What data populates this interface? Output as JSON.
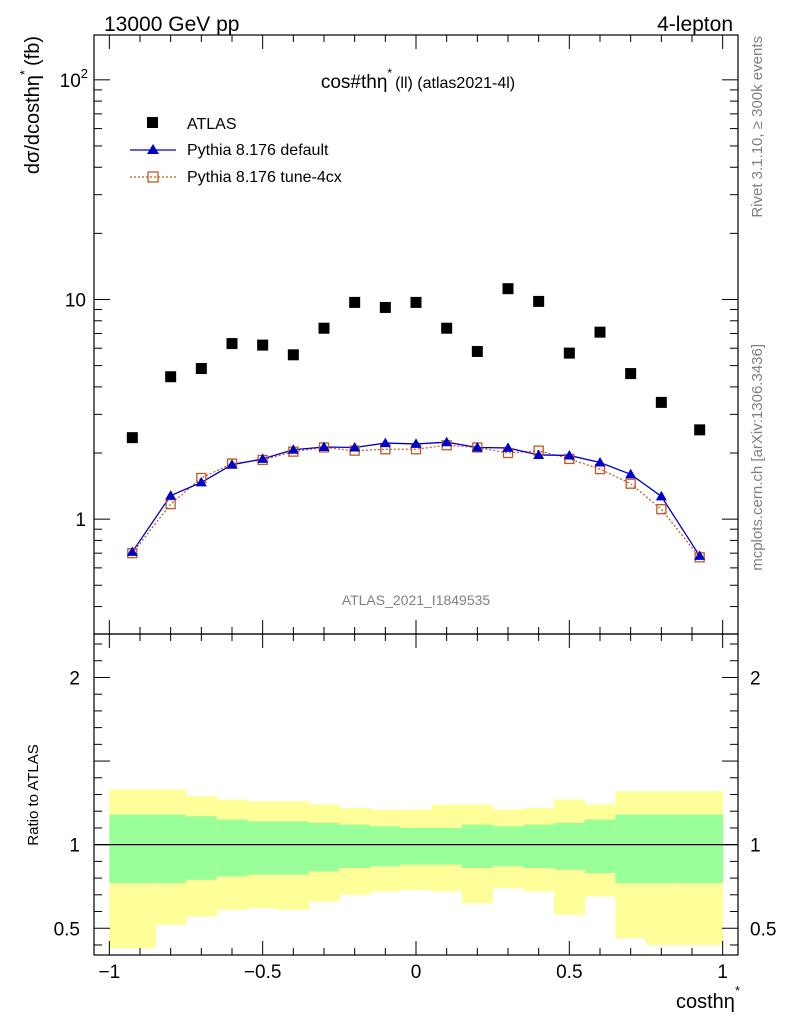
{
  "header": {
    "left": "13000 GeV pp",
    "right": "4-lepton"
  },
  "side": {
    "rivet": "Rivet 3.1.10, ≥ 300k events",
    "mcplots": "mcplots.cern.ch [arXiv:1306.3436]"
  },
  "chart_data": [
    {
      "type": "scatter",
      "title": "cos#thη* (ll) (atlas2021-4l)",
      "title_main": "cos#thη",
      "title_sup": "*",
      "title_rest": "(ll) (atlas2021-4l)",
      "ylabel": "dσ/dcosthη* (fb)",
      "ylabel_main": "dσ/dcosthη",
      "ylabel_sup": "*",
      "ylabel_unit": "(fb)",
      "watermark": "ATLAS_2021_I1849535",
      "yscale": "log",
      "xlim": [
        -1.05,
        1.05
      ],
      "ylim": [
        0.3,
        160
      ],
      "yticks": [
        {
          "v": 1,
          "label": "1"
        },
        {
          "v": 10,
          "label": "10"
        },
        {
          "v": 100,
          "label": "10",
          "sup": "2"
        }
      ],
      "legend_position": "top-left",
      "x": [
        -0.925,
        -0.8,
        -0.7,
        -0.6,
        -0.5,
        -0.4,
        -0.3,
        -0.2,
        -0.1,
        0,
        0.1,
        0.2,
        0.3,
        0.4,
        0.5,
        0.6,
        0.7,
        0.8,
        0.925
      ],
      "series": [
        {
          "name": "ATLAS",
          "style": "data",
          "color": "#000000",
          "values": [
            2.35,
            4.45,
            4.85,
            6.3,
            6.2,
            5.6,
            7.4,
            9.7,
            9.2,
            9.7,
            7.4,
            5.8,
            11.2,
            9.8,
            5.7,
            7.1,
            4.6,
            3.4,
            2.55
          ]
        },
        {
          "name": "Pythia 8.176 default",
          "style": "line-triangle",
          "color": "#0000cc",
          "values": [
            0.71,
            1.28,
            1.47,
            1.77,
            1.88,
            2.07,
            2.13,
            2.12,
            2.22,
            2.2,
            2.24,
            2.12,
            2.11,
            1.96,
            1.95,
            1.81,
            1.6,
            1.27,
            0.68
          ]
        },
        {
          "name": "Pythia 8.176 tune-4cx",
          "style": "dotted-square",
          "color": "#c05820",
          "values": [
            0.7,
            1.17,
            1.54,
            1.79,
            1.86,
            2.03,
            2.12,
            2.05,
            2.08,
            2.08,
            2.17,
            2.12,
            2.0,
            2.05,
            1.88,
            1.69,
            1.45,
            1.11,
            0.67
          ]
        }
      ]
    },
    {
      "type": "area",
      "ylabel": "Ratio to ATLAS",
      "xlabel": "costhη*",
      "xlabel_main": "costhη",
      "xlabel_sup": "*",
      "xlim": [
        -1.05,
        1.05
      ],
      "ylim": [
        0.34,
        2.26
      ],
      "xticks": [
        {
          "v": -1,
          "label": "−1"
        },
        {
          "v": -0.5,
          "label": "−0.5"
        },
        {
          "v": 0,
          "label": "0"
        },
        {
          "v": 0.5,
          "label": "0.5"
        },
        {
          "v": 1,
          "label": "1"
        }
      ],
      "yticks": [
        {
          "v": 0.5,
          "label": "0.5"
        },
        {
          "v": 1,
          "label": "1"
        },
        {
          "v": 2,
          "label": "2"
        }
      ],
      "bins": [
        -1,
        -0.85,
        -0.75,
        -0.65,
        -0.55,
        -0.45,
        -0.35,
        -0.25,
        -0.15,
        -0.05,
        0.05,
        0.15,
        0.25,
        0.35,
        0.45,
        0.55,
        0.65,
        0.75,
        0.85,
        1
      ],
      "band_inner_low": [
        0.77,
        0.77,
        0.79,
        0.81,
        0.82,
        0.82,
        0.84,
        0.86,
        0.87,
        0.88,
        0.88,
        0.86,
        0.87,
        0.86,
        0.85,
        0.83,
        0.77,
        0.77,
        0.77
      ],
      "band_inner_high": [
        1.18,
        1.18,
        1.17,
        1.15,
        1.14,
        1.14,
        1.13,
        1.12,
        1.11,
        1.1,
        1.1,
        1.12,
        1.11,
        1.12,
        1.13,
        1.15,
        1.18,
        1.18,
        1.18
      ],
      "band_outer_low": [
        0.38,
        0.52,
        0.57,
        0.61,
        0.62,
        0.61,
        0.66,
        0.7,
        0.72,
        0.73,
        0.72,
        0.65,
        0.74,
        0.72,
        0.58,
        0.69,
        0.44,
        0.4,
        0.4
      ],
      "band_outer_high": [
        1.33,
        1.33,
        1.29,
        1.27,
        1.26,
        1.26,
        1.24,
        1.22,
        1.21,
        1.21,
        1.24,
        1.24,
        1.21,
        1.22,
        1.27,
        1.24,
        1.32,
        1.32,
        1.32
      ],
      "colors": {
        "inner": "#99ff99",
        "outer": "#ffff99"
      },
      "reference": 1
    }
  ]
}
